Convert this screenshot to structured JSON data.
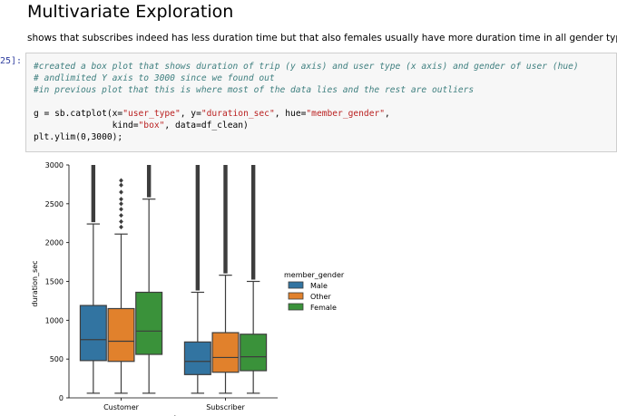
{
  "header": {
    "title": "Multivariate Exploration",
    "description": "shows that subscribes indeed has less duration time but that also females usually have more duration time in all gender types"
  },
  "cell": {
    "prompt": "25]:",
    "comment1": "#created a box plot that shows duration of trip (y axis) and user type (x axis) and gender of user (hue)",
    "comment2": "# andlimited Y axis to 3000 since we found out",
    "comment3": "#in previous plot that this is where most of the data lies and the rest are outliers",
    "code_line1_a": "g = sb.catplot(x=",
    "code_line1_s1": "\"user_type\"",
    "code_line1_b": ", y=",
    "code_line1_s2": "\"duration_sec\"",
    "code_line1_c": ", hue=",
    "code_line1_s3": "\"member_gender\"",
    "code_line1_d": ",",
    "code_line2_a": "               kind=",
    "code_line2_s1": "\"box\"",
    "code_line2_b": ", data=df_clean)",
    "code_line3": "plt.ylim(0,3000);"
  },
  "chart_data": {
    "type": "box",
    "ylabel": "duration_sec",
    "xlabel": "user_type",
    "ylim": [
      0,
      3000
    ],
    "yticks": [
      0,
      500,
      1000,
      1500,
      2000,
      2500,
      3000
    ],
    "categories": [
      "Customer",
      "Subscriber"
    ],
    "legend": {
      "title": "member_gender",
      "position": "right"
    },
    "series": [
      {
        "name": "Male",
        "color": "#3274a1",
        "boxes": [
          {
            "whisker_low": 60,
            "q1": 480,
            "median": 750,
            "q3": 1190,
            "whisker_high": 2240,
            "outliers_from": 2240
          },
          {
            "whisker_low": 60,
            "q1": 300,
            "median": 470,
            "q3": 720,
            "whisker_high": 1360,
            "outliers_from": 1360
          }
        ]
      },
      {
        "name": "Other",
        "color": "#e1812c",
        "boxes": [
          {
            "whisker_low": 60,
            "q1": 470,
            "median": 730,
            "q3": 1150,
            "whisker_high": 2110,
            "outliers": [
              2200,
              2270,
              2350,
              2430,
              2500,
              2560,
              2650,
              2740,
              2800
            ]
          },
          {
            "whisker_low": 60,
            "q1": 330,
            "median": 520,
            "q3": 840,
            "whisker_high": 1580,
            "outliers_from": 1580
          }
        ]
      },
      {
        "name": "Female",
        "color": "#3a923a",
        "boxes": [
          {
            "whisker_low": 60,
            "q1": 560,
            "median": 860,
            "q3": 1360,
            "whisker_high": 2560,
            "outliers_from": 2560
          },
          {
            "whisker_low": 60,
            "q1": 350,
            "median": 530,
            "q3": 820,
            "whisker_high": 1500,
            "outliers_from": 1500
          }
        ]
      }
    ]
  }
}
